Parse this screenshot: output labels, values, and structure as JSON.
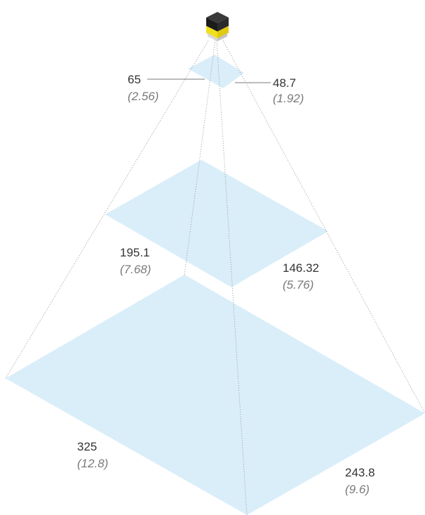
{
  "colors": {
    "plane_fill": "#d9eef9",
    "fov_line": "#8f8f8f",
    "camera_top": "#1c1c1c",
    "camera_band": "#f2df1c",
    "camera_base": "#d8d8d8",
    "mm_text": "#333333",
    "inch_text": "#7a7a7a"
  },
  "icons": {
    "camera": "vision-sensor-camera-icon"
  },
  "fields_of_view": [
    {
      "level": "near",
      "width_mm": "65",
      "width_in": "(2.56)",
      "height_mm": "48.7",
      "height_in": "(1.92)"
    },
    {
      "level": "middle",
      "width_mm": "195.1",
      "width_in": "(7.68)",
      "height_mm": "146.32",
      "height_in": "(5.76)"
    },
    {
      "level": "far",
      "width_mm": "325",
      "width_in": "(12.8)",
      "height_mm": "243.8",
      "height_in": "(9.6)"
    }
  ]
}
